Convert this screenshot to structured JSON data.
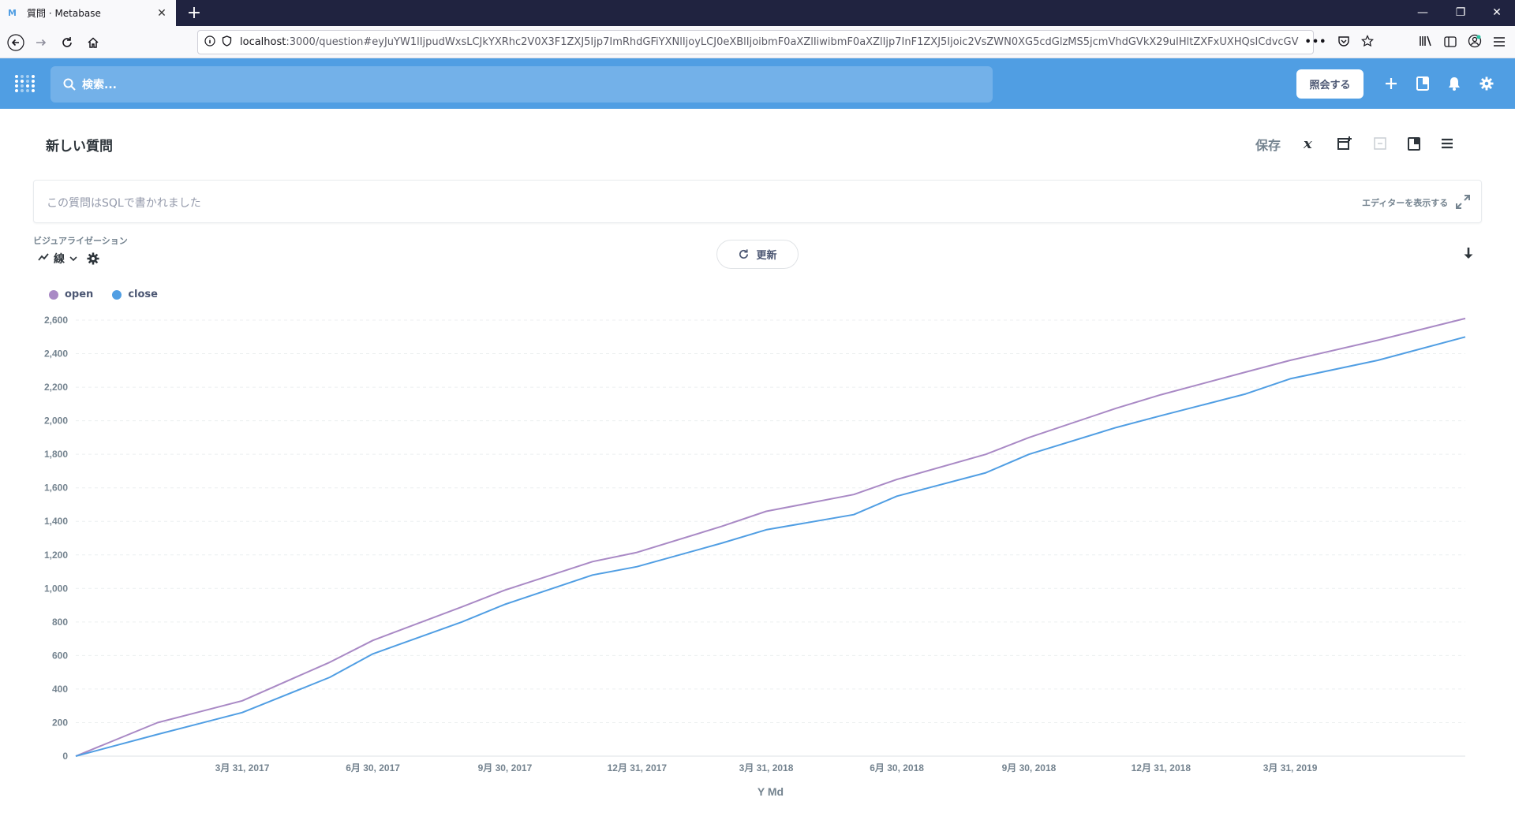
{
  "browser": {
    "tab_title": "質問 · Metabase",
    "url_host": "localhost",
    "url_rest": ":3000/question#eyJuYW1lIjpudWxsLCJkYXRhc2V0X3F1ZXJ5Ijp7ImRhdGFiYXNlIjoyLCJ0eXBlIjoibmF0aXZlIiwibmF0aXZlIjp7InF1ZXJ5Ijoic2VsZWN0XG5cdGlzMS5jcmVhdGVkX29uIHltZXFxUXHQsICdvcGV"
  },
  "header": {
    "search_placeholder": "検索...",
    "ask_button": "照会する"
  },
  "question": {
    "title": "新しい質問",
    "save_label": "保存",
    "sql_note": "この質問はSQLで書かれました",
    "show_editor": "エディターを表示する",
    "viz_section_label": "ビジュアライゼーション",
    "viz_type": "線",
    "refresh_label": "更新"
  },
  "colors": {
    "brand": "#509ee3",
    "open_series": "#a989c5",
    "close_series": "#509ee3"
  },
  "chart_data": {
    "type": "line",
    "xlabel": "Y Md",
    "ylabel": "",
    "ylim": [
      0,
      2600
    ],
    "y_ticks": [
      0,
      200,
      400,
      600,
      800,
      1000,
      1200,
      1400,
      1600,
      1800,
      2000,
      2200,
      2400,
      2600
    ],
    "y_tick_labels": [
      "0",
      "200",
      "400",
      "600",
      "800",
      "1,000",
      "1,200",
      "1,400",
      "1,600",
      "1,800",
      "2,000",
      "2,200",
      "2,400",
      "2,600"
    ],
    "x_ticks": [
      "2017-03-31",
      "2017-06-30",
      "2017-09-30",
      "2017-12-31",
      "2018-03-31",
      "2018-06-30",
      "2018-09-30",
      "2018-12-31",
      "2019-03-31"
    ],
    "x_tick_labels": [
      "3月 31, 2017",
      "6月 30, 2017",
      "9月 30, 2017",
      "12月 31, 2017",
      "3月 31, 2018",
      "6月 30, 2018",
      "9月 30, 2018",
      "12月 31, 2018",
      "3月 31, 2019"
    ],
    "xlim": [
      "2016-12-05",
      "2019-07-31"
    ],
    "legend_position": "top-left",
    "grid": true,
    "series": [
      {
        "name": "open",
        "x": [
          "2016-12-05",
          "2017-01-31",
          "2017-03-31",
          "2017-05-31",
          "2017-06-30",
          "2017-08-31",
          "2017-09-30",
          "2017-11-30",
          "2017-12-31",
          "2018-02-28",
          "2018-03-31",
          "2018-05-31",
          "2018-06-30",
          "2018-08-31",
          "2018-09-30",
          "2018-11-30",
          "2018-12-31",
          "2019-02-28",
          "2019-03-31",
          "2019-05-31",
          "2019-07-31"
        ],
        "values": [
          0,
          200,
          330,
          560,
          690,
          890,
          990,
          1160,
          1215,
          1370,
          1460,
          1560,
          1650,
          1800,
          1900,
          2075,
          2155,
          2290,
          2360,
          2480,
          2610
        ]
      },
      {
        "name": "close",
        "x": [
          "2016-12-05",
          "2017-01-31",
          "2017-03-31",
          "2017-05-31",
          "2017-06-30",
          "2017-08-31",
          "2017-09-30",
          "2017-11-30",
          "2017-12-31",
          "2018-02-28",
          "2018-03-31",
          "2018-05-31",
          "2018-06-30",
          "2018-08-31",
          "2018-09-30",
          "2018-11-30",
          "2018-12-31",
          "2019-02-28",
          "2019-03-31",
          "2019-05-31",
          "2019-07-31"
        ],
        "values": [
          0,
          130,
          260,
          470,
          610,
          800,
          905,
          1080,
          1130,
          1270,
          1350,
          1440,
          1550,
          1690,
          1800,
          1960,
          2030,
          2160,
          2250,
          2360,
          2500
        ]
      }
    ]
  }
}
